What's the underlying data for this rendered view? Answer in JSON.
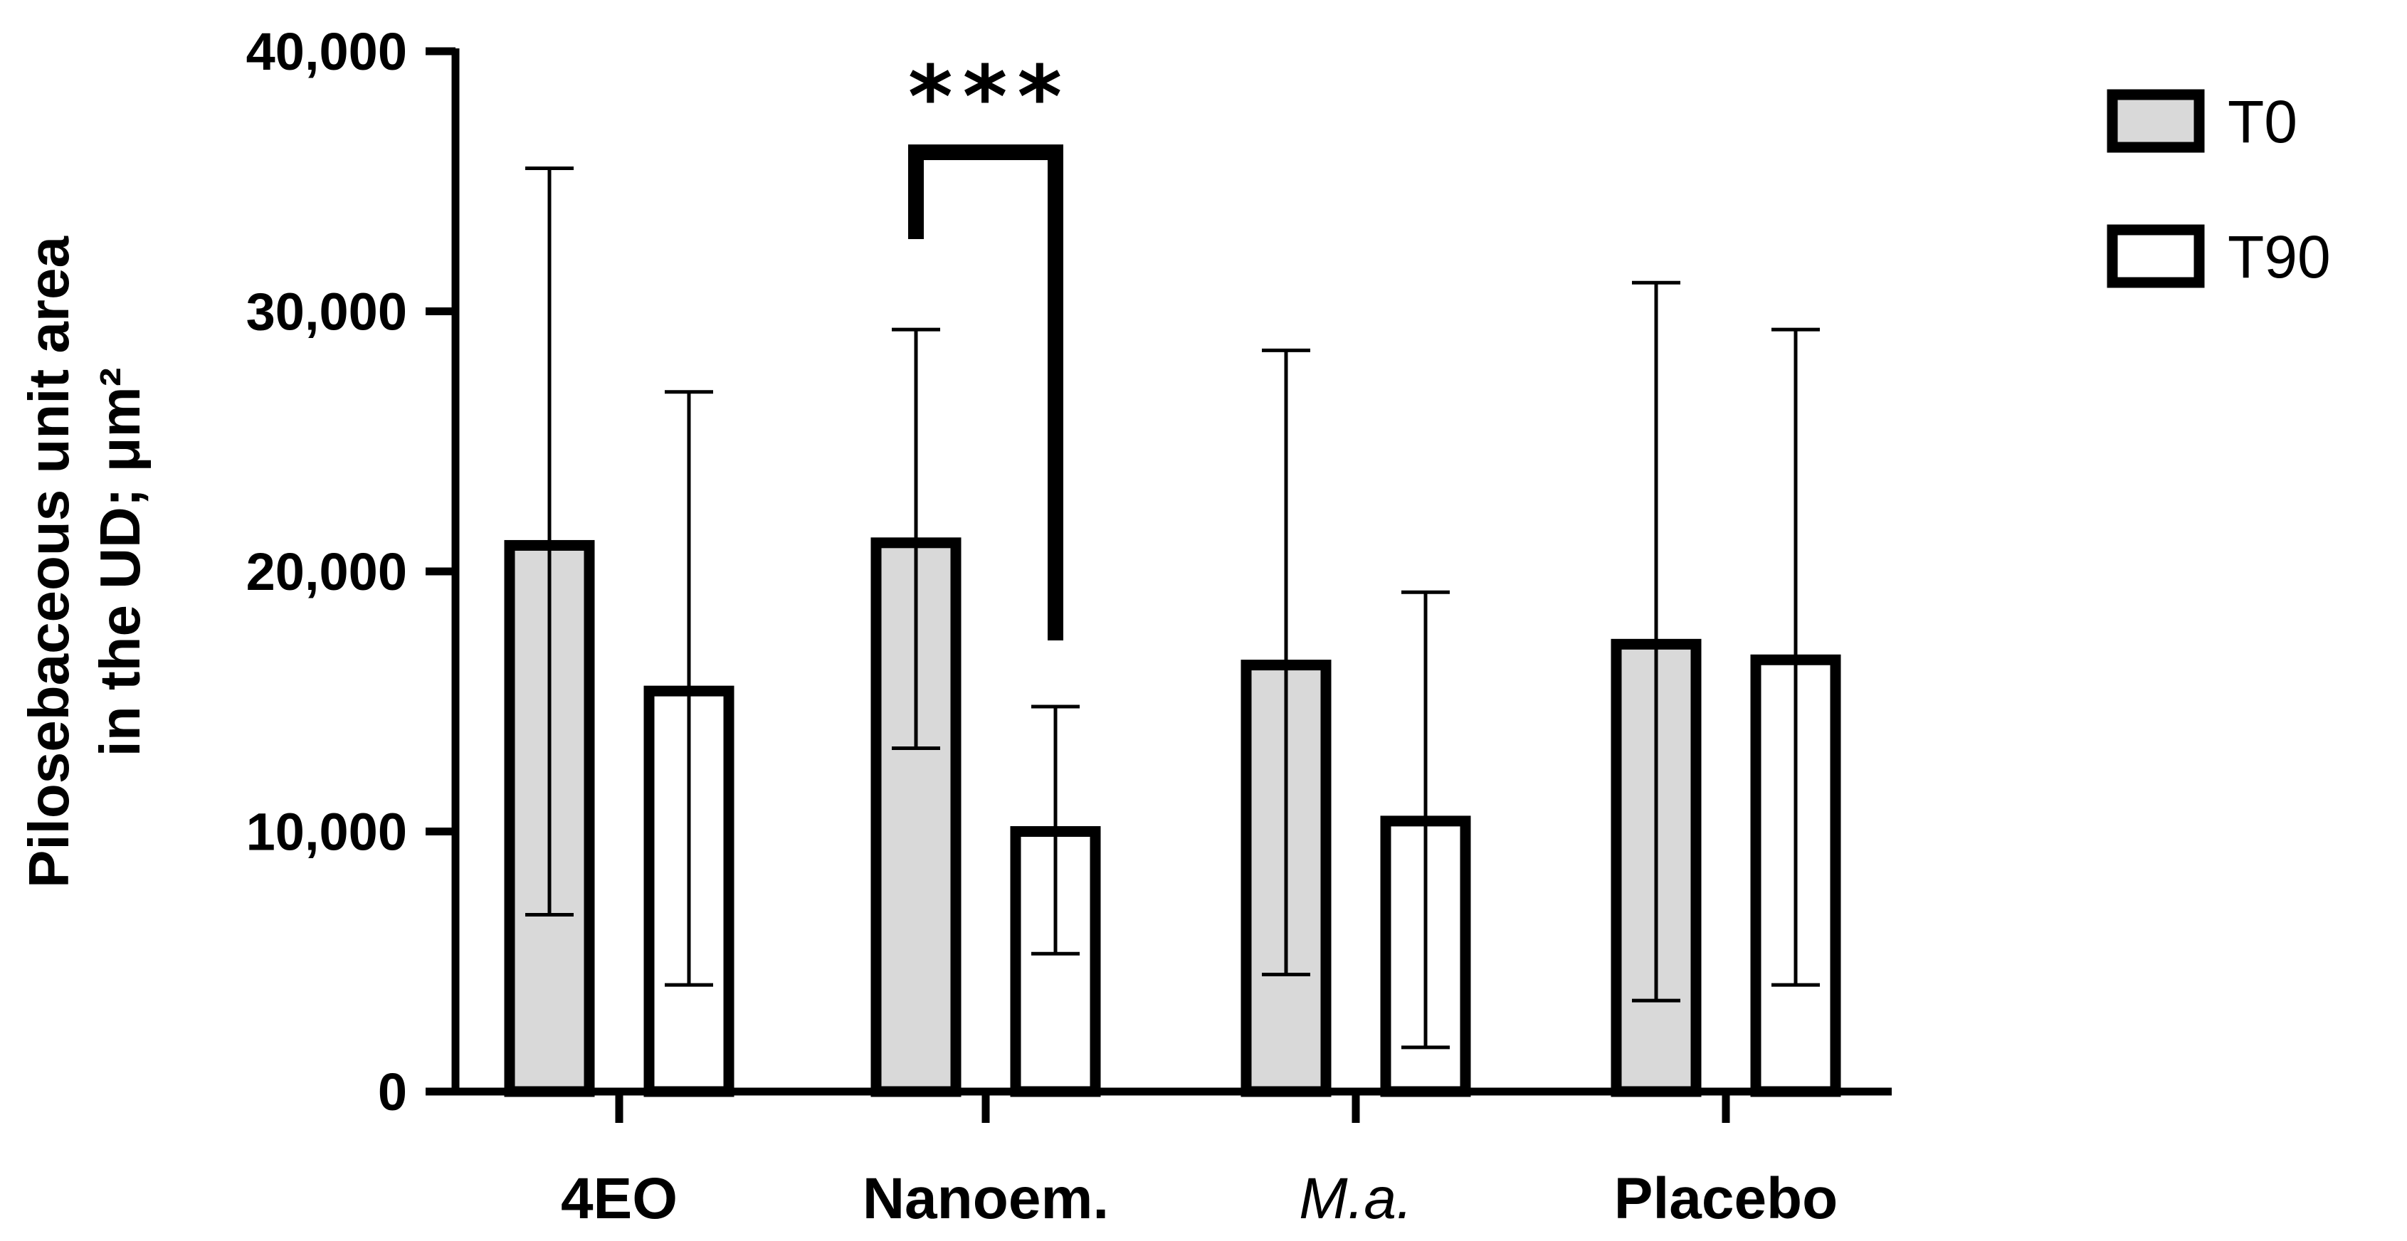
{
  "chart_data": {
    "type": "bar",
    "title": "",
    "xlabel": "",
    "ylabel_lines": [
      "Pilosebaceous unit area",
      "in the UD; μm²"
    ],
    "categories": [
      "4EO",
      "Nanoem.",
      "M.a.",
      "Placebo"
    ],
    "italic_categories": [
      "M.a."
    ],
    "series": [
      {
        "name": "T0",
        "fill": "#d9d9d9",
        "values": [
          21000,
          21100,
          16400,
          17200
        ],
        "error_upper": [
          35500,
          29300,
          28500,
          31100
        ],
        "error_lower": [
          6800,
          13200,
          4500,
          3500
        ]
      },
      {
        "name": "T90",
        "fill": "#ffffff",
        "values": [
          15400,
          10000,
          10400,
          16600
        ],
        "error_upper": [
          26900,
          14800,
          19200,
          29300
        ],
        "error_lower": [
          4100,
          5300,
          1700,
          4100
        ]
      }
    ],
    "ylim": [
      0,
      40000
    ],
    "yticks": [
      0,
      10000,
      20000,
      30000,
      40000
    ],
    "ytick_labels": [
      "0",
      "10,000",
      "20,000",
      "30,000",
      "40,000"
    ],
    "grid": false,
    "legend_position": "top-right",
    "annotations": [
      {
        "label": "***",
        "type": "significance-bracket",
        "category": "Nanoem.",
        "from_series": "T0",
        "to_series": "T90"
      }
    ]
  },
  "colors": {
    "axis": "#000000",
    "t0_fill": "#d9d9d9",
    "t90_fill": "#ffffff"
  }
}
